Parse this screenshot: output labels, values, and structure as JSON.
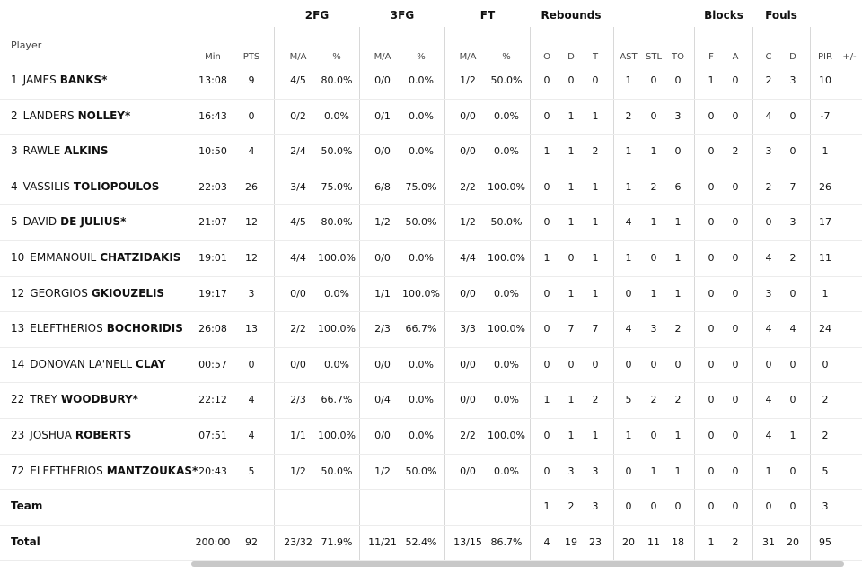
{
  "headers": {
    "player": "Player",
    "groups": [
      "2FG",
      "3FG",
      "FT",
      "Rebounds",
      "Blocks",
      "Fouls"
    ],
    "sub": [
      "Min",
      "PTS",
      "M/A",
      "%",
      "M/A",
      "%",
      "M/A",
      "%",
      "O",
      "D",
      "T",
      "AST",
      "STL",
      "TO",
      "F",
      "A",
      "C",
      "D",
      "PIR",
      "+/-"
    ]
  },
  "players": [
    {
      "num": "1",
      "first": "JAMES",
      "last": "BANKS*",
      "stats": [
        "13:08",
        "9",
        "4/5",
        "80.0%",
        "0/0",
        "0.0%",
        "1/2",
        "50.0%",
        "0",
        "0",
        "0",
        "1",
        "0",
        "0",
        "1",
        "0",
        "2",
        "3",
        "10",
        ""
      ]
    },
    {
      "num": "2",
      "first": "LANDERS",
      "last": "NOLLEY*",
      "stats": [
        "16:43",
        "0",
        "0/2",
        "0.0%",
        "0/1",
        "0.0%",
        "0/0",
        "0.0%",
        "0",
        "1",
        "1",
        "2",
        "0",
        "3",
        "0",
        "0",
        "4",
        "0",
        "-7",
        ""
      ]
    },
    {
      "num": "3",
      "first": "RAWLE",
      "last": "ALKINS",
      "stats": [
        "10:50",
        "4",
        "2/4",
        "50.0%",
        "0/0",
        "0.0%",
        "0/0",
        "0.0%",
        "1",
        "1",
        "2",
        "1",
        "1",
        "0",
        "0",
        "2",
        "3",
        "0",
        "1",
        ""
      ]
    },
    {
      "num": "4",
      "first": "VASSILIS",
      "last": "TOLIOPOULOS",
      "stats": [
        "22:03",
        "26",
        "3/4",
        "75.0%",
        "6/8",
        "75.0%",
        "2/2",
        "100.0%",
        "0",
        "1",
        "1",
        "1",
        "2",
        "6",
        "0",
        "0",
        "2",
        "7",
        "26",
        ""
      ]
    },
    {
      "num": "5",
      "first": "DAVID",
      "last": "DE JULIUS*",
      "stats": [
        "21:07",
        "12",
        "4/5",
        "80.0%",
        "1/2",
        "50.0%",
        "1/2",
        "50.0%",
        "0",
        "1",
        "1",
        "4",
        "1",
        "1",
        "0",
        "0",
        "0",
        "3",
        "17",
        ""
      ]
    },
    {
      "num": "10",
      "first": "EMMANOUIL",
      "last": "CHATZIDAKIS",
      "stats": [
        "19:01",
        "12",
        "4/4",
        "100.0%",
        "0/0",
        "0.0%",
        "4/4",
        "100.0%",
        "1",
        "0",
        "1",
        "1",
        "0",
        "1",
        "0",
        "0",
        "4",
        "2",
        "11",
        ""
      ]
    },
    {
      "num": "12",
      "first": "GEORGIOS",
      "last": "GKIOUZELIS",
      "stats": [
        "19:17",
        "3",
        "0/0",
        "0.0%",
        "1/1",
        "100.0%",
        "0/0",
        "0.0%",
        "0",
        "1",
        "1",
        "0",
        "1",
        "1",
        "0",
        "0",
        "3",
        "0",
        "1",
        ""
      ]
    },
    {
      "num": "13",
      "first": "ELEFTHERIOS",
      "last": "BOCHORIDIS",
      "stats": [
        "26:08",
        "13",
        "2/2",
        "100.0%",
        "2/3",
        "66.7%",
        "3/3",
        "100.0%",
        "0",
        "7",
        "7",
        "4",
        "3",
        "2",
        "0",
        "0",
        "4",
        "4",
        "24",
        ""
      ]
    },
    {
      "num": "14",
      "first": "DONOVAN LA'NELL",
      "last": "CLAY",
      "stats": [
        "00:57",
        "0",
        "0/0",
        "0.0%",
        "0/0",
        "0.0%",
        "0/0",
        "0.0%",
        "0",
        "0",
        "0",
        "0",
        "0",
        "0",
        "0",
        "0",
        "0",
        "0",
        "0",
        ""
      ]
    },
    {
      "num": "22",
      "first": "TREY",
      "last": "WOODBURY*",
      "stats": [
        "22:12",
        "4",
        "2/3",
        "66.7%",
        "0/4",
        "0.0%",
        "0/0",
        "0.0%",
        "1",
        "1",
        "2",
        "5",
        "2",
        "2",
        "0",
        "0",
        "4",
        "0",
        "2",
        ""
      ]
    },
    {
      "num": "23",
      "first": "JOSHUA",
      "last": "ROBERTS",
      "stats": [
        "07:51",
        "4",
        "1/1",
        "100.0%",
        "0/0",
        "0.0%",
        "2/2",
        "100.0%",
        "0",
        "1",
        "1",
        "1",
        "0",
        "1",
        "0",
        "0",
        "4",
        "1",
        "2",
        ""
      ]
    },
    {
      "num": "72",
      "first": "ELEFTHERIOS",
      "last": "MANTZOUKAS*",
      "stats": [
        "20:43",
        "5",
        "1/2",
        "50.0%",
        "1/2",
        "50.0%",
        "0/0",
        "0.0%",
        "0",
        "3",
        "3",
        "0",
        "1",
        "1",
        "0",
        "0",
        "1",
        "0",
        "5",
        ""
      ]
    }
  ],
  "team": {
    "label": "Team",
    "stats": [
      "",
      "",
      "",
      "",
      "",
      "",
      "",
      "",
      "1",
      "2",
      "3",
      "0",
      "0",
      "0",
      "0",
      "0",
      "0",
      "0",
      "3",
      ""
    ]
  },
  "total": {
    "label": "Total",
    "stats": [
      "200:00",
      "92",
      "23/32",
      "71.9%",
      "11/21",
      "52.4%",
      "13/15",
      "86.7%",
      "4",
      "19",
      "23",
      "20",
      "11",
      "18",
      "1",
      "2",
      "31",
      "20",
      "95",
      ""
    ]
  }
}
